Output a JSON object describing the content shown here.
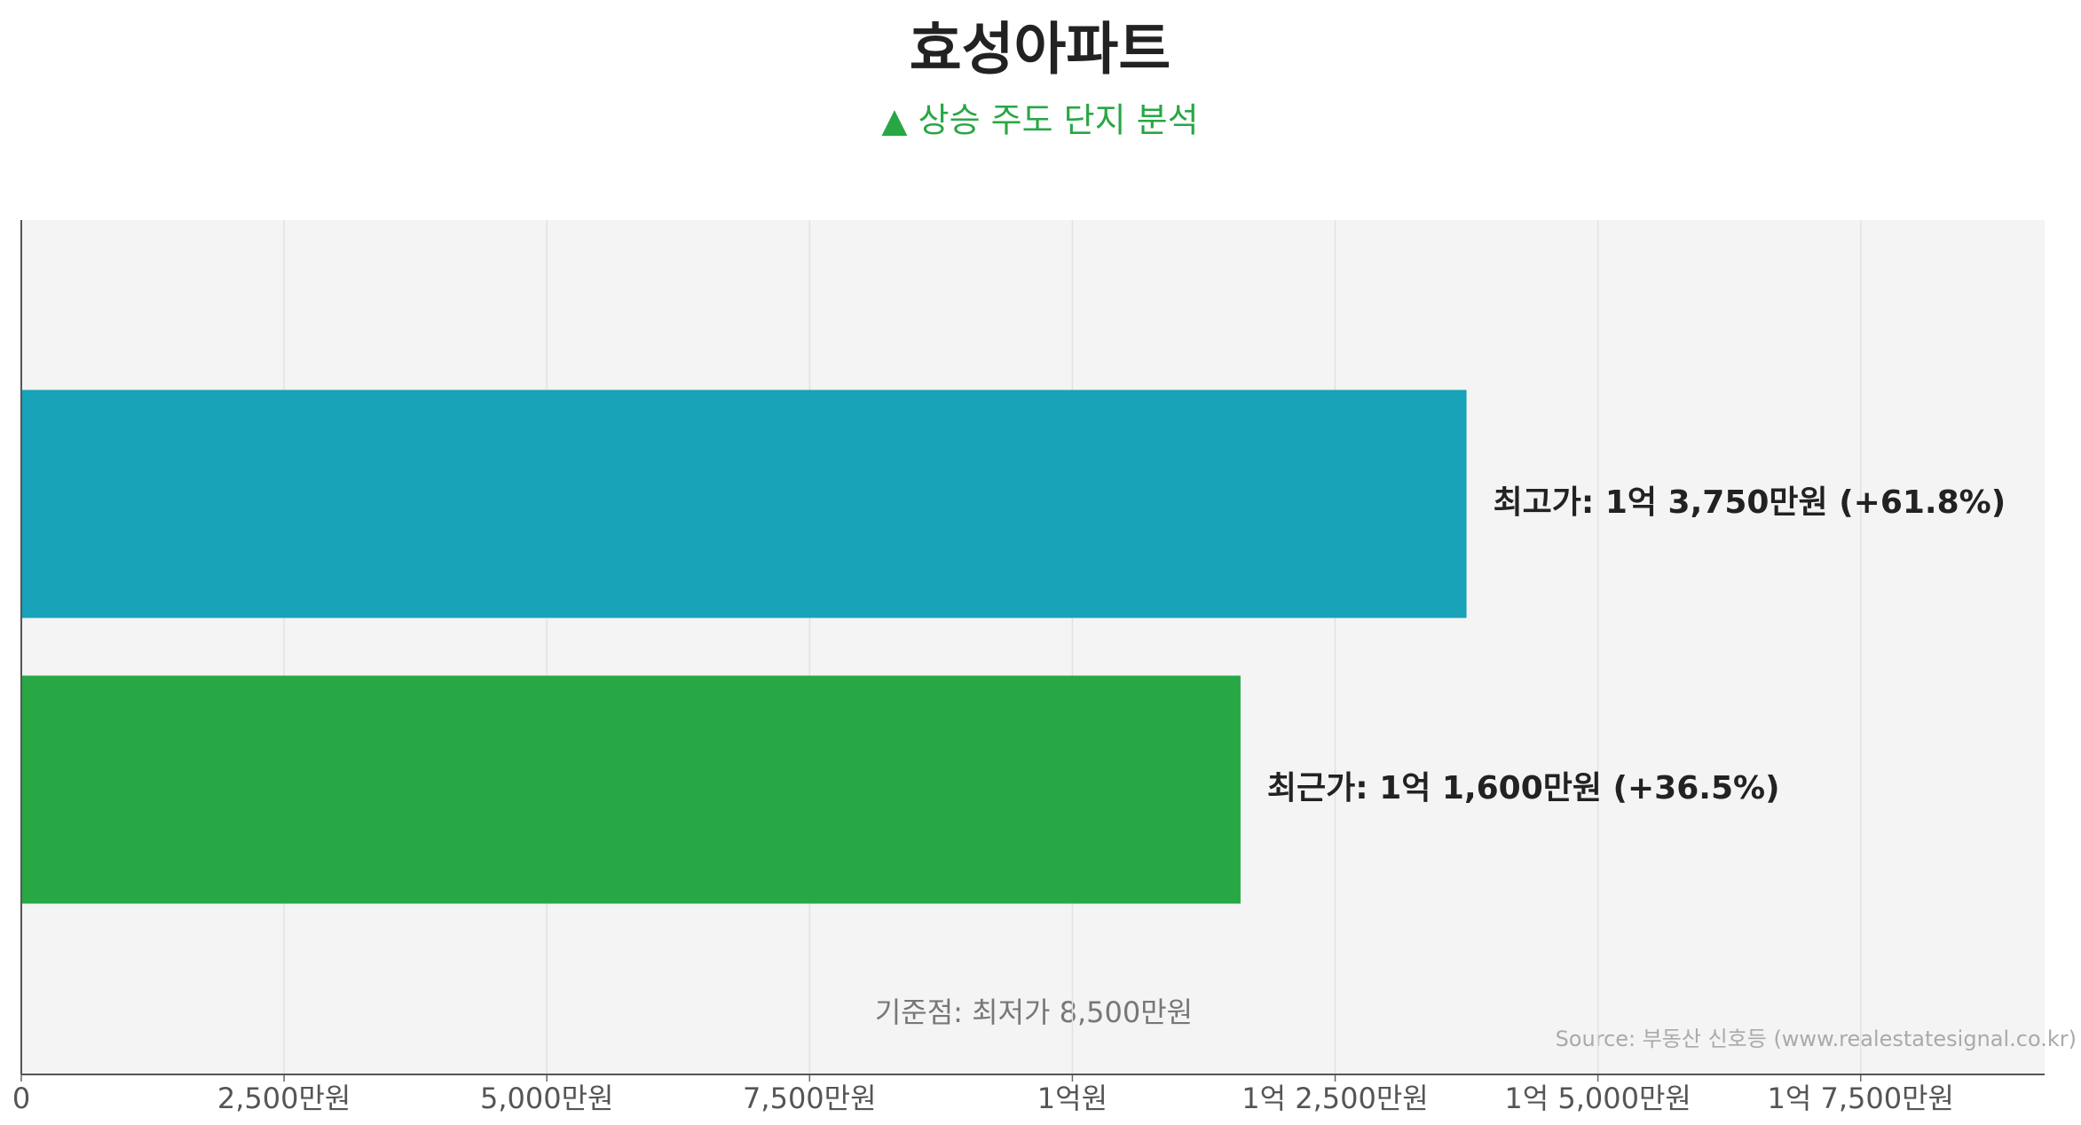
{
  "chart_data": {
    "type": "bar",
    "orientation": "horizontal",
    "title": "효성아파트",
    "subtitle": "▲ 상승 주도 단지 분석",
    "values": [
      137500000,
      116000000
    ],
    "value_labels": [
      "최고가: 1억 3,750만원 (+61.8%)",
      "최근가: 1억 1,600만원 (+36.5%)"
    ],
    "colors": [
      "#18a2b8",
      "#28a745"
    ],
    "xlim": [
      0,
      192500000
    ],
    "xticks": [
      0,
      {
        "value": 25000000,
        "label": "2,500만원"
      },
      {
        "value": 50000000,
        "label": "5,000만원"
      },
      {
        "value": 75000000,
        "label": "7,500만원"
      },
      {
        "value": 100000000,
        "label": "1억원"
      },
      {
        "value": 125000000,
        "label": "1억 2,500만원"
      },
      {
        "value": 150000000,
        "label": "1억 5,000만원"
      },
      {
        "value": 175000000,
        "label": "1억 7,500만원"
      }
    ],
    "grid": true,
    "annotation": "기준점: 최저가 8,500만원",
    "source": "Source: 부동산 신호등 (www.realestatesignal.co.kr)"
  }
}
